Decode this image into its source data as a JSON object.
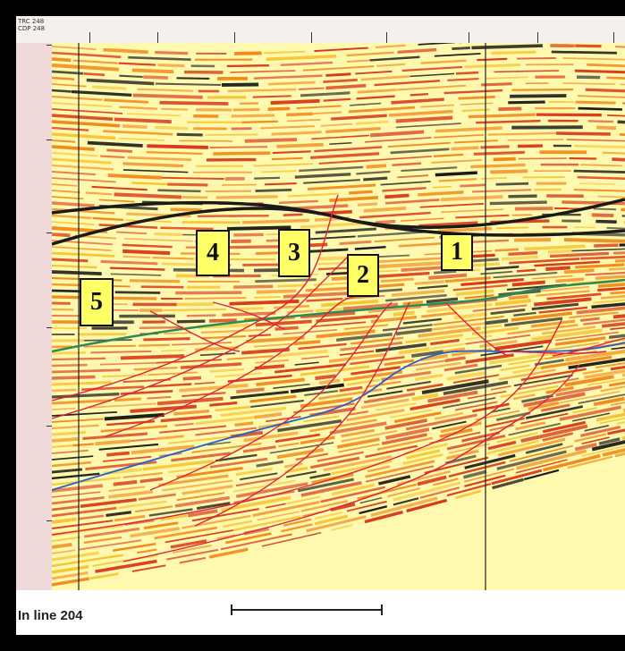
{
  "caption": "In line 204",
  "fault_labels": [
    "1",
    "2",
    "3",
    "4",
    "5"
  ],
  "colors": {
    "background": "#fff9b0",
    "reflector_dark": "#1a1a1a",
    "reflector_red": "#d93a1a",
    "reflector_orange": "#f08a1a",
    "fault_line": "#e0203a",
    "horizon_blue": "#2060d0",
    "horizon_green": "#2a8a5a",
    "label_fill": "#ffff66"
  }
}
